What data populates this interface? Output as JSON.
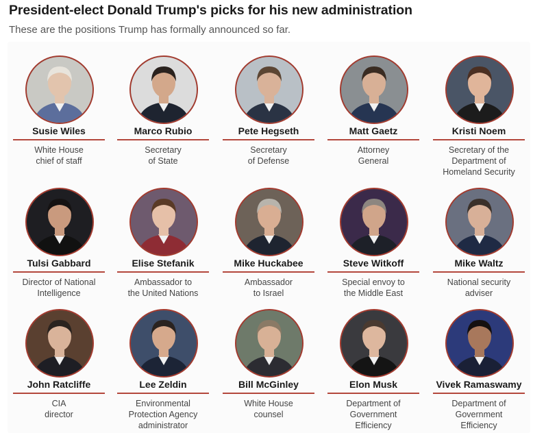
{
  "header": {
    "title": "President-elect Donald Trump's picks for his new administration",
    "subtitle": "These are the positions Trump has formally announced so far."
  },
  "colors": {
    "accent_rule": "#b3463b",
    "portrait_border": "#a33a2e"
  },
  "picks": [
    {
      "name": "Susie Wiles",
      "role": "White House\nchief of staff",
      "bg": "#c9c9c4",
      "skin": "#e2c4ad",
      "hair": "#e8e4dc",
      "shirt": "#5c6e9c"
    },
    {
      "name": "Marco Rubio",
      "role": "Secretary\nof State",
      "bg": "#dcdcdc",
      "skin": "#d3a88b",
      "hair": "#2a221e",
      "shirt": "#1e2430"
    },
    {
      "name": "Pete Hegseth",
      "role": "Secretary\nof Defense",
      "bg": "#b9c0c6",
      "skin": "#d9b299",
      "hair": "#5b4533",
      "shirt": "#2a3344"
    },
    {
      "name": "Matt Gaetz",
      "role": "Attorney\nGeneral",
      "bg": "#8a8f92",
      "skin": "#d8b096",
      "hair": "#3a2c22",
      "shirt": "#263552"
    },
    {
      "name": "Kristi Noem",
      "role": "Secretary of the\nDepartment of\nHomeland Security",
      "bg": "#4a5566",
      "skin": "#e0b59a",
      "hair": "#4b2f22",
      "shirt": "#1c1c1c"
    },
    {
      "name": "Tulsi Gabbard",
      "role": "Director of National\nIntelligence",
      "bg": "#1e1e22",
      "skin": "#c99a7e",
      "hair": "#151212",
      "shirt": "#111111"
    },
    {
      "name": "Elise Stefanik",
      "role": "Ambassador to\nthe United Nations",
      "bg": "#6e5a6e",
      "skin": "#e6c0a8",
      "hair": "#5a3a26",
      "shirt": "#8e2c34"
    },
    {
      "name": "Mike Huckabee",
      "role": "Ambassador\nto Israel",
      "bg": "#6d6258",
      "skin": "#d9ae93",
      "hair": "#b8b4ac",
      "shirt": "#1e2430"
    },
    {
      "name": "Steve Witkoff",
      "role": "Special envoy to\nthe Middle East",
      "bg": "#3b2a4a",
      "skin": "#d0a58a",
      "hair": "#8c8680",
      "shirt": "#1d2028"
    },
    {
      "name": "Mike Waltz",
      "role": "National security\nadviser",
      "bg": "#6a7080",
      "skin": "#d8b098",
      "hair": "#3a302a",
      "shirt": "#1f2a44"
    },
    {
      "name": "John Ratcliffe",
      "role": "CIA\ndirector",
      "bg": "#5a4030",
      "skin": "#d9b39a",
      "hair": "#2a231f",
      "shirt": "#1e1e24"
    },
    {
      "name": "Lee Zeldin",
      "role": "Environmental\nProtection Agency\nadministrator",
      "bg": "#3e4e6a",
      "skin": "#d6a98c",
      "hair": "#2a2320",
      "shirt": "#1c2436"
    },
    {
      "name": "Bill McGinley",
      "role": "White House\ncounsel",
      "bg": "#6e7a6a",
      "skin": "#d8b196",
      "hair": "#8a7a66",
      "shirt": "#2c2c32"
    },
    {
      "name": "Elon Musk",
      "role": "Department of\nGovernment\nEfficiency",
      "bg": "#3a3a3e",
      "skin": "#ddb79e",
      "hair": "#4a3a30",
      "shirt": "#141414"
    },
    {
      "name": "Vivek Ramaswamy",
      "role": "Department of\nGovernment\nEfficiency",
      "bg": "#2c3a7a",
      "skin": "#a8785c",
      "hair": "#141010",
      "shirt": "#1a2036"
    }
  ]
}
